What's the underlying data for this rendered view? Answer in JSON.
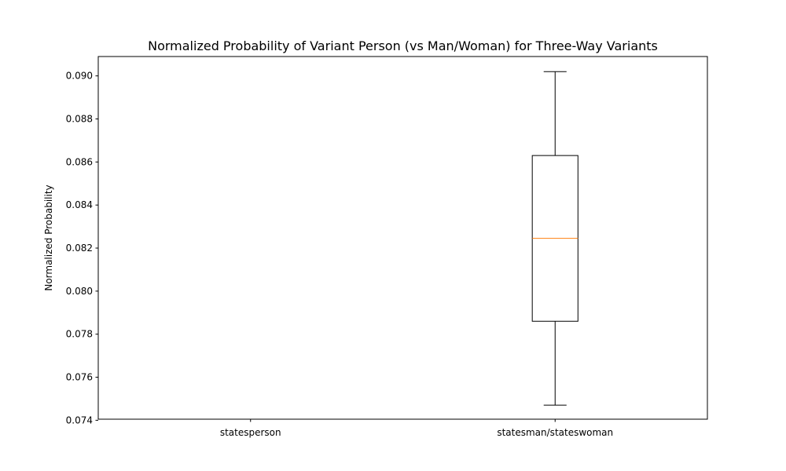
{
  "chart_data": {
    "type": "box",
    "title": "Normalized Probability of Variant Person (vs Man/Woman) for Three-Way Variants",
    "xlabel": "",
    "ylabel": "Normalized Probability",
    "ylim": [
      0.07405,
      0.0909
    ],
    "yticks": [
      0.074,
      0.076,
      0.078,
      0.08,
      0.082,
      0.084,
      0.086,
      0.088,
      0.09
    ],
    "ytick_labels": [
      "0.074",
      "0.076",
      "0.078",
      "0.080",
      "0.082",
      "0.084",
      "0.086",
      "0.088",
      "0.090"
    ],
    "categories": [
      "statesperson",
      "statesman/stateswoman"
    ],
    "boxes": [
      null,
      {
        "whisker_low": 0.0747,
        "q1": 0.0786,
        "median": 0.08245,
        "q3": 0.0863,
        "whisker_high": 0.0902
      }
    ],
    "grid": false,
    "colors": {
      "box": "#000000",
      "median": "#ff7f0e"
    }
  }
}
